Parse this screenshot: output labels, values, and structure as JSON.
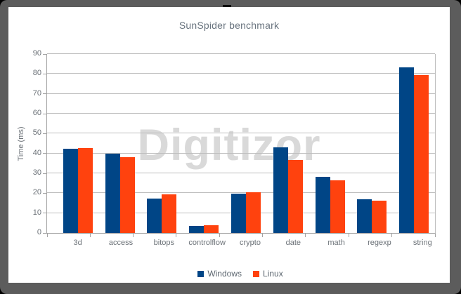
{
  "watermark": "Digitizor",
  "chart_data": {
    "type": "bar",
    "title": "SunSpider benchmark",
    "xlabel": "",
    "ylabel": "Time (ms)",
    "ylim": [
      0,
      90
    ],
    "yticks": [
      0,
      10,
      20,
      30,
      40,
      50,
      60,
      70,
      80,
      90
    ],
    "grid": true,
    "legend_position": "bottom",
    "categories": [
      "3d",
      "access",
      "bitops",
      "controlflow",
      "crypto",
      "date",
      "math",
      "regexp",
      "string"
    ],
    "series": [
      {
        "name": "Windows",
        "color": "#004586",
        "values": [
          42.3,
          39.9,
          17.2,
          3.6,
          19.6,
          43.0,
          28.4,
          17.0,
          83.4
        ]
      },
      {
        "name": "Linux",
        "color": "#ff420e",
        "values": [
          42.7,
          38.2,
          19.3,
          3.9,
          20.3,
          36.8,
          26.6,
          16.1,
          79.4
        ]
      }
    ]
  }
}
